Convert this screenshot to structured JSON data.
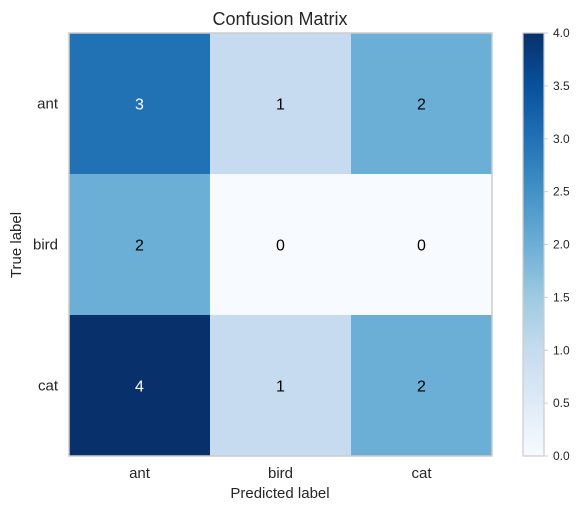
{
  "chart_data": {
    "type": "heatmap",
    "title": "Confusion Matrix",
    "xlabel": "Predicted label",
    "ylabel": "True label",
    "x_categories": [
      "ant",
      "bird",
      "cat"
    ],
    "y_categories": [
      "ant",
      "bird",
      "cat"
    ],
    "values": [
      [
        3,
        1,
        2
      ],
      [
        2,
        0,
        0
      ],
      [
        4,
        1,
        2
      ]
    ],
    "color_scale": {
      "name": "Blues",
      "min": 0,
      "max": 4,
      "ticks": [
        "0.0",
        "0.5",
        "1.0",
        "1.5",
        "2.0",
        "2.5",
        "3.0",
        "3.5",
        "4.0"
      ],
      "stops": [
        "#f7fbff",
        "#deebf7",
        "#c6dbef",
        "#9ecae1",
        "#6baed6",
        "#4292c6",
        "#2171b5",
        "#08519c",
        "#08306b"
      ]
    },
    "grid": false
  }
}
